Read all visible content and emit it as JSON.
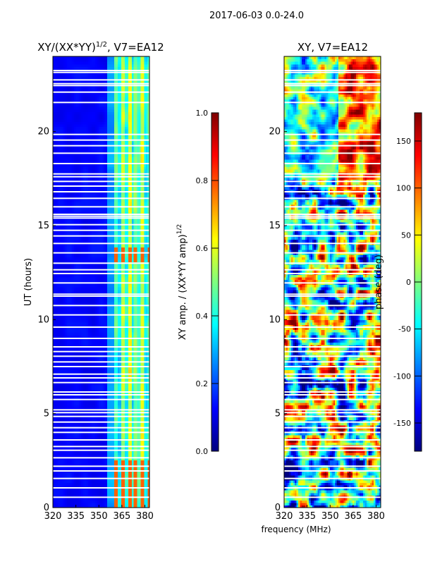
{
  "figure": {
    "suptitle": "2017-06-03 0.0-24.0",
    "shared_xlabel": "frequency (MHz)"
  },
  "colors": {
    "jet": [
      "#00007f",
      "#0000ff",
      "#007fff",
      "#00ffff",
      "#7fff7f",
      "#ffff00",
      "#ff7f00",
      "#ff0000",
      "#7f0000"
    ],
    "gap": "#ffffff",
    "axis": "#000000"
  },
  "chart_data": [
    {
      "type": "heatmap",
      "id": "amp",
      "title_base": "XY/(XX*YY)",
      "title_sup": "1/2",
      "title_tail": ", V7=EA12",
      "xlabel": "",
      "ylabel": "UT (hours)",
      "xlim": [
        320,
        383
      ],
      "ylim": [
        0,
        24
      ],
      "xticks": [
        320,
        335,
        350,
        365,
        380
      ],
      "yticks": [
        0,
        5,
        10,
        15,
        20
      ],
      "colorbar": {
        "label_base": "XY amp. / (XX*YY amp)",
        "label_sup": "1/2",
        "range": [
          0.0,
          1.0
        ],
        "ticks": [
          "0.0",
          "0.2",
          "0.4",
          "0.6",
          "0.8",
          "1.0"
        ],
        "tick_values": [
          0.0,
          0.2,
          0.4,
          0.6,
          0.8,
          1.0
        ]
      },
      "description": "Low normalized amplitude (~0.1) below 360 MHz; bright striped channels 360-382 MHz (~0.4-0.6); peaks near 0.8 around 0-3 UT and 13 UT."
    },
    {
      "type": "heatmap",
      "id": "phase",
      "title_base": "XY, V7=EA12",
      "title_sup": "",
      "title_tail": "",
      "xlabel": "frequency (MHz)",
      "ylabel": "",
      "xlim": [
        320,
        383
      ],
      "ylim": [
        0,
        24
      ],
      "xticks": [
        320,
        335,
        350,
        365,
        380
      ],
      "yticks": [
        0,
        5,
        10,
        15,
        20
      ],
      "colorbar": {
        "label_base": "phase (deg)",
        "label_sup": "",
        "range": [
          -180,
          180
        ],
        "ticks": [
          "-150",
          "-100",
          "-50",
          "0",
          "50",
          "100",
          "150"
        ],
        "tick_values": [
          -150,
          -100,
          -50,
          0,
          50,
          100,
          150
        ]
      },
      "description": "Noisy XY phase spanning -180 to 180 degrees across all frequencies and times."
    }
  ],
  "gap_hours": [
    0.55,
    1.05,
    1.55,
    1.95,
    2.2,
    2.65,
    3.05,
    3.25,
    3.6,
    4.0,
    4.25,
    4.55,
    4.85,
    5.05,
    5.2,
    5.75,
    6.0,
    6.15,
    6.65,
    6.9,
    7.1,
    7.5,
    7.75,
    8.05,
    8.3,
    8.55,
    9.0,
    9.6,
    10.25,
    10.75,
    11.25,
    11.35,
    11.95,
    12.45,
    12.65,
    13.0,
    13.55,
    14.05,
    14.45,
    14.75,
    15.05,
    15.4,
    15.5,
    15.6,
    16.0,
    16.45,
    16.8,
    17.1,
    17.35,
    17.6,
    17.75,
    18.3,
    18.85,
    19.25,
    19.55,
    19.85,
    21.55,
    22.1,
    22.45,
    22.55,
    22.75,
    23.15,
    23.25
  ]
}
